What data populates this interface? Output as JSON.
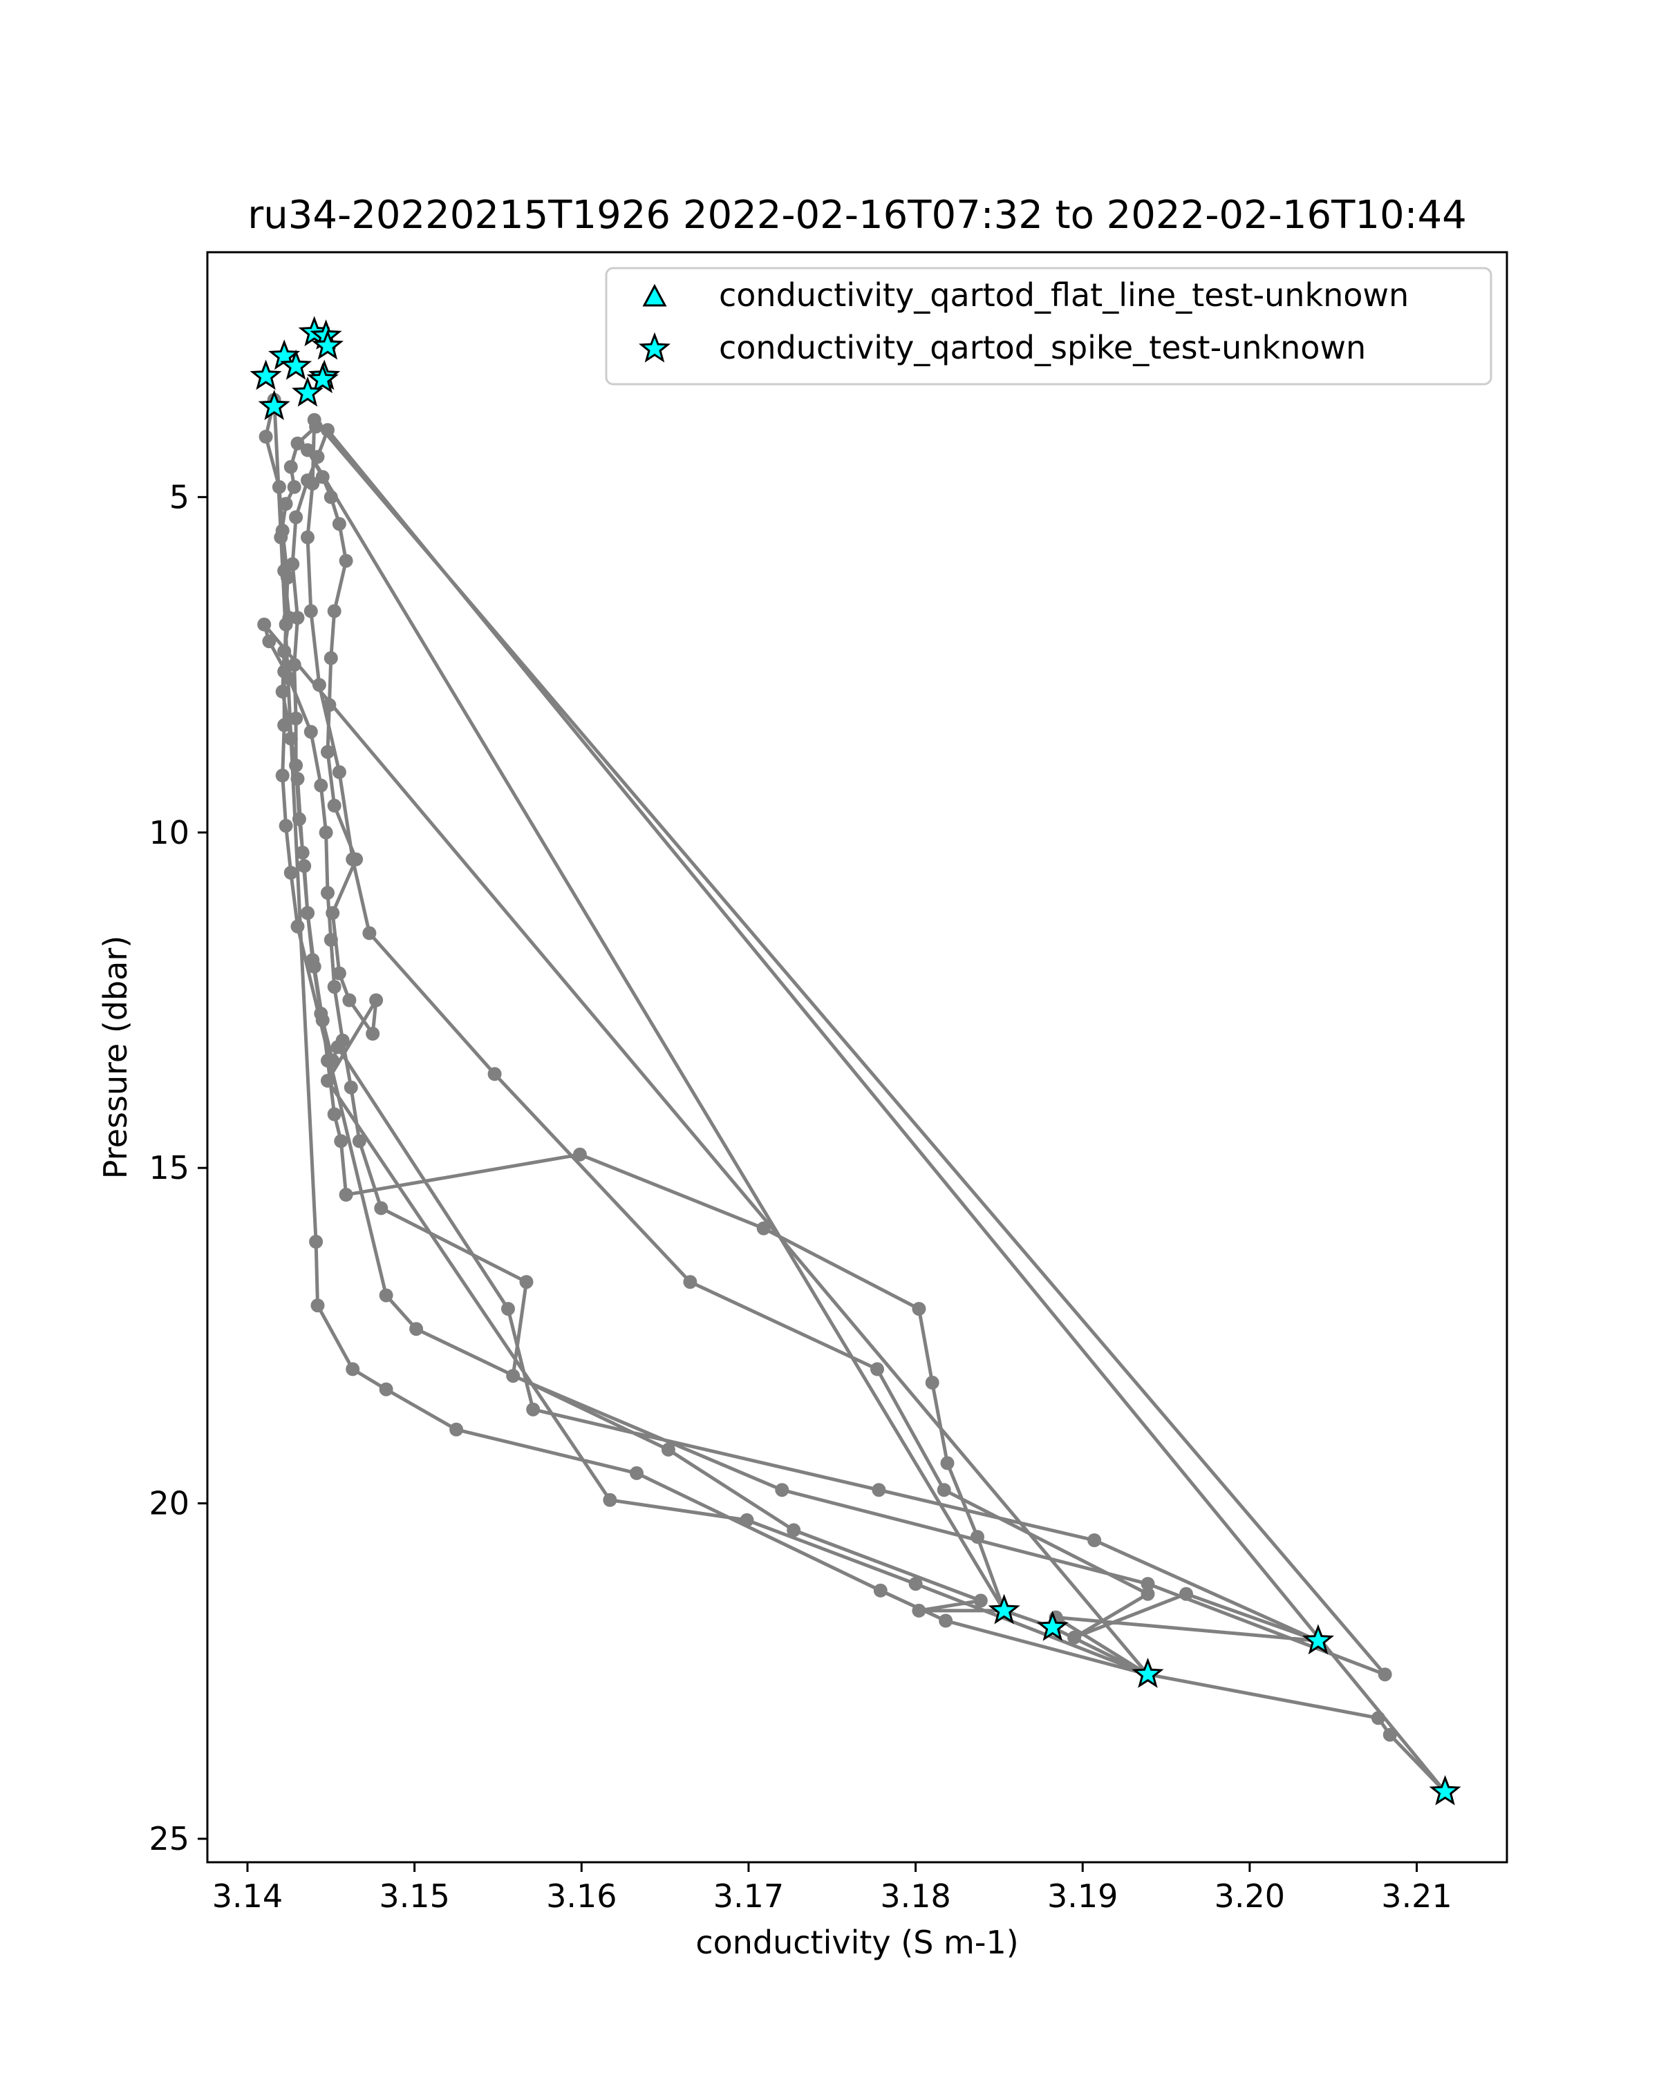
{
  "chart_data": {
    "type": "scatter",
    "title": "ru34-20220215T1926 2022-02-16T07:32 to 2022-02-16T10:44",
    "xlabel": "conductivity (S m-1)",
    "ylabel": "Pressure (dbar)",
    "xlim": [
      3.1376,
      3.2154
    ],
    "ylim": [
      25.35,
      1.35
    ],
    "y_inverted": true,
    "grid": false,
    "legend_position": "top-right",
    "xticks": [
      3.14,
      3.15,
      3.16,
      3.17,
      3.18,
      3.19,
      3.2,
      3.21
    ],
    "xtick_labels": [
      "3.14",
      "3.15",
      "3.16",
      "3.17",
      "3.18",
      "3.19",
      "3.20",
      "3.21"
    ],
    "yticks": [
      5,
      10,
      15,
      20,
      25
    ],
    "ytick_labels": [
      "5",
      "10",
      "15",
      "20",
      "25"
    ],
    "series": [
      {
        "color": "#808080",
        "marker": "circle",
        "x": [
          3.1441,
          3.143,
          3.1426,
          3.1428,
          3.1423,
          3.142,
          3.1422,
          3.1425,
          3.1422,
          3.1421,
          3.1426,
          3.143,
          3.1433,
          3.1436,
          3.144,
          3.1445,
          3.1448,
          3.1452,
          3.1456,
          3.1459,
          3.1599,
          3.1709,
          3.1802,
          3.181,
          3.1819,
          3.1837,
          3.1853,
          3.1882,
          3.1939,
          3.2077,
          3.2084,
          3.2117,
          3.1448,
          3.1442,
          3.1436,
          3.1429,
          3.1427,
          3.143,
          3.1428,
          3.1429,
          3.1429,
          3.1431,
          3.1434,
          3.1436,
          3.1439,
          3.1444,
          3.1451,
          3.1454,
          3.1556,
          3.1571,
          3.1778,
          3.1907,
          3.2041,
          3.1884,
          3.1939,
          3.1818,
          3.1779,
          3.1633,
          3.1525,
          3.1483,
          3.1463,
          3.1442,
          3.1441,
          3.1416,
          3.1411,
          3.1419,
          3.1421,
          3.1424,
          3.1423,
          3.1422,
          3.1422,
          3.1421,
          3.1423,
          3.1426,
          3.143,
          3.1483,
          3.1501,
          3.1652,
          3.1727,
          3.1839,
          3.1802,
          3.1853,
          3.1436,
          3.1445,
          3.145,
          3.1455,
          3.1459,
          3.1452,
          3.145,
          3.1449,
          3.1448,
          3.1452,
          3.1465,
          3.1451,
          3.1455,
          3.1461,
          3.1475,
          3.1477,
          3.1448,
          3.1617,
          3.1699,
          3.18,
          3.1939,
          3.141,
          3.1413,
          3.1425,
          3.1438,
          3.1444,
          3.1447,
          3.1448,
          3.145,
          3.1452,
          3.1457,
          3.1462,
          3.1467,
          3.148,
          3.1567,
          3.1559,
          3.172,
          3.1939,
          3.2081,
          3.144,
          3.1439,
          3.1436,
          3.1438,
          3.1443,
          3.1455,
          3.1463,
          3.1473,
          3.1548,
          3.1665,
          3.1777,
          3.1817,
          3.1939,
          3.1895,
          3.1962,
          3.2041
        ],
        "y": [
          3.95,
          4.2,
          4.55,
          4.85,
          5.1,
          5.6,
          6.1,
          6.8,
          7.3,
          7.9,
          8.6,
          9.2,
          10.3,
          11.2,
          12.0,
          12.8,
          13.4,
          14.2,
          14.6,
          15.4,
          14.8,
          15.9,
          17.1,
          18.2,
          19.4,
          20.5,
          21.6,
          21.85,
          22.55,
          23.2,
          23.45,
          24.3,
          4.0,
          4.4,
          4.75,
          5.3,
          6.0,
          6.8,
          7.5,
          8.3,
          9.0,
          9.8,
          10.5,
          11.2,
          11.9,
          12.7,
          13.4,
          13.2,
          17.1,
          18.6,
          19.8,
          20.55,
          22.05,
          21.7,
          22.55,
          21.75,
          21.3,
          19.55,
          18.9,
          18.3,
          18.0,
          17.05,
          16.1,
          3.55,
          4.1,
          4.85,
          5.5,
          6.2,
          6.9,
          7.6,
          8.4,
          9.15,
          9.9,
          10.6,
          11.4,
          16.9,
          17.4,
          19.2,
          20.4,
          21.45,
          21.6,
          21.6,
          4.3,
          4.7,
          5.0,
          5.4,
          5.95,
          6.7,
          7.4,
          8.1,
          8.8,
          9.6,
          10.4,
          11.2,
          12.1,
          12.5,
          13.0,
          12.5,
          13.7,
          19.95,
          20.25,
          21.2,
          22.55,
          6.9,
          7.15,
          7.7,
          8.5,
          9.3,
          10.0,
          10.9,
          11.6,
          12.3,
          13.1,
          13.8,
          14.6,
          15.6,
          16.7,
          18.1,
          19.8,
          21.2,
          22.55,
          3.85,
          4.8,
          5.6,
          6.7,
          7.8,
          9.1,
          10.4,
          11.5,
          13.6,
          16.7,
          18.0,
          19.8,
          21.35,
          22.0,
          21.35,
          22.05
        ]
      },
      {
        "name": "conductivity_qartod_flat_line_test-unknown",
        "color": "#00ffff",
        "marker": "triangle",
        "x": [],
        "y": []
      },
      {
        "name": "conductivity_qartod_spike_test-unknown",
        "color": "#00ffff",
        "marker": "star",
        "x": [
          3.144,
          3.1447,
          3.1448,
          3.1422,
          3.1429,
          3.1411,
          3.1446,
          3.1445,
          3.1436,
          3.1416,
          3.1853,
          3.1882,
          3.1939,
          3.2041,
          3.2117
        ],
        "y": [
          2.55,
          2.6,
          2.75,
          2.9,
          3.05,
          3.2,
          3.2,
          3.25,
          3.45,
          3.65,
          21.6,
          21.85,
          22.55,
          22.05,
          24.3
        ]
      }
    ]
  }
}
